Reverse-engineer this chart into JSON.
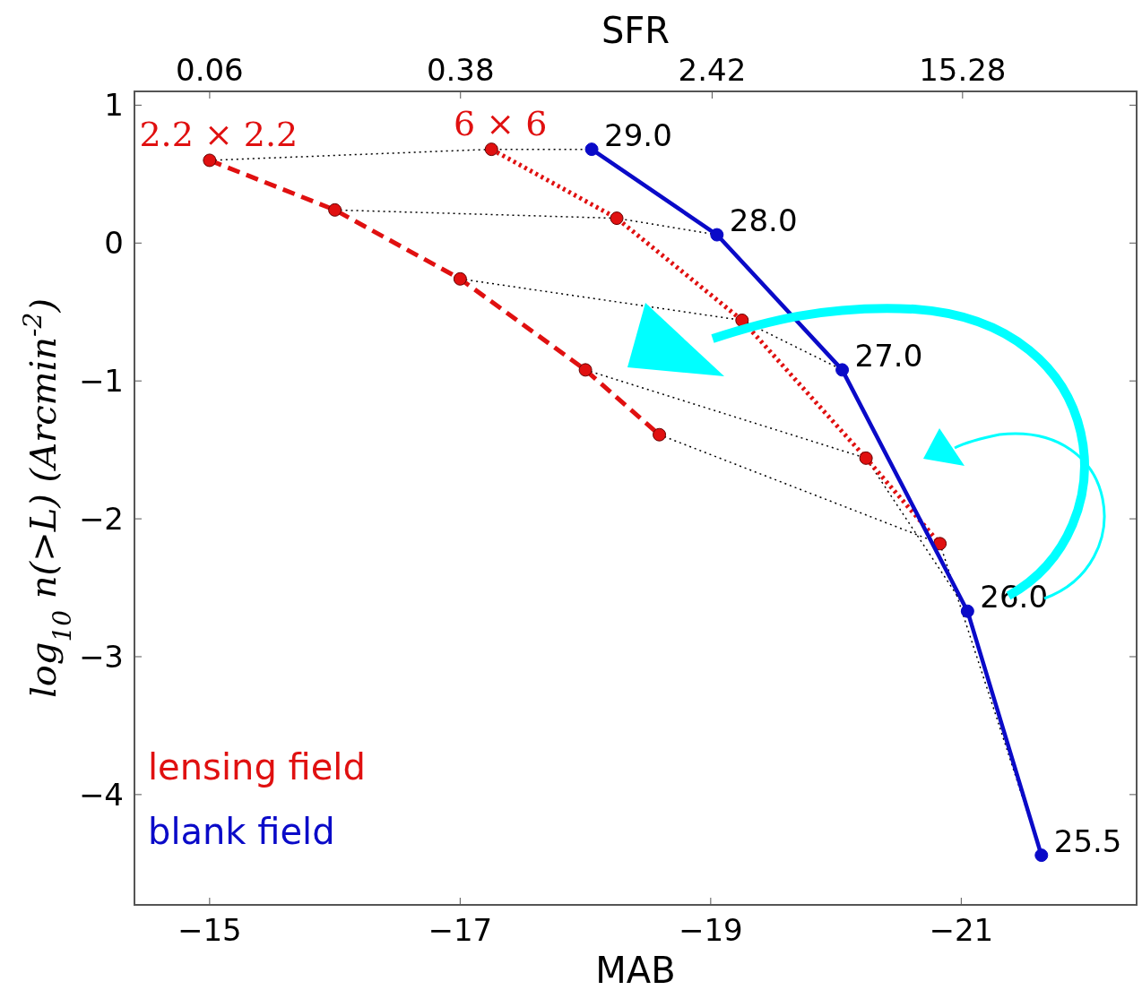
{
  "chart_data": {
    "type": "line",
    "xlabel": "MAB",
    "ylabel": "log$_{10}$ n(>L)  (Arcmin$^{-2}$)",
    "x2label": "SFR",
    "xlim": [
      -14.4,
      -22.4
    ],
    "xticks": [
      {
        "value": -15,
        "label": "−15"
      },
      {
        "value": -17,
        "label": "−17"
      },
      {
        "value": -19,
        "label": "−19"
      },
      {
        "value": -21,
        "label": "−21"
      }
    ],
    "x2lim": [
      0.0345,
      55
    ],
    "x2ticks": [
      0.06,
      0.38,
      2.42,
      15.28
    ],
    "log": "x2",
    "ylim": [
      -4.8,
      1.1
    ],
    "yticks": [
      {
        "value": -4,
        "label": "−4"
      },
      {
        "value": -3,
        "label": "−3"
      },
      {
        "value": -2,
        "label": "−2"
      },
      {
        "value": -1,
        "label": "−1"
      },
      0,
      1
    ],
    "grid": false,
    "legend": "bottom left",
    "marker": "circle",
    "series": [
      {
        "x": [
          -15.0,
          -17.25,
          -18.05
        ],
        "values": [
          0.6,
          0.68,
          0.68
        ],
        "color": "#000000",
        "line_style": "dotted",
        "marker": "none"
      },
      {
        "x": [
          -16.0,
          -18.25,
          -19.05
        ],
        "values": [
          0.24,
          0.18,
          0.06
        ],
        "color": "#000000",
        "line_style": "dotted",
        "marker": "none"
      },
      {
        "x": [
          -17.0,
          -19.25,
          -20.05
        ],
        "values": [
          -0.26,
          -0.56,
          -0.92
        ],
        "color": "#000000",
        "line_style": "dotted",
        "marker": "none"
      },
      {
        "x": [
          -18.0,
          -20.24,
          -21.05
        ],
        "values": [
          -0.92,
          -1.56,
          -2.67
        ],
        "color": "#000000",
        "line_style": "dotted",
        "marker": "none"
      },
      {
        "x": [
          -18.59,
          -20.83,
          -21.64
        ],
        "values": [
          -1.39,
          -2.18,
          -4.44
        ],
        "color": "#000000",
        "line_style": "dotted",
        "marker": "none"
      },
      {
        "x": [
          -15.0,
          -16.0,
          -17.0,
          -18.0,
          -18.59
        ],
        "values": [
          0.6,
          0.24,
          -0.26,
          -0.92,
          -1.39
        ],
        "color": "#e01010",
        "line_style": "dashed"
      },
      {
        "x": [
          -17.25,
          -18.25,
          -19.25,
          -20.24,
          -20.83
        ],
        "values": [
          0.68,
          0.18,
          -0.56,
          -1.56,
          -2.18
        ],
        "color": "#e01010",
        "line_style": "dotted"
      },
      {
        "name": "blank field",
        "x": [
          -18.05,
          -19.05,
          -20.05,
          -21.05,
          -21.64
        ],
        "values": [
          0.68,
          0.06,
          -0.92,
          -2.67,
          -4.44
        ],
        "color": "#0a0ac8",
        "line_style": "solid"
      }
    ],
    "annotations": [
      {
        "text": "2.2 × 2.2",
        "x": -15.0,
        "y": 0.6
      },
      {
        "text": "6 × 6",
        "x": -17.25,
        "y": 0.68
      },
      {
        "text": "29.0",
        "x": -18.05,
        "y": 0.68
      },
      {
        "text": "28.0",
        "x": -19.05,
        "y": 0.06
      },
      {
        "text": "27.0",
        "x": -20.05,
        "y": -0.92
      },
      {
        "text": "26.0",
        "x": -21.05,
        "y": -2.67
      },
      {
        "text": "25.5",
        "x": -21.64,
        "y": -4.44
      },
      "lensing field"
    ]
  }
}
